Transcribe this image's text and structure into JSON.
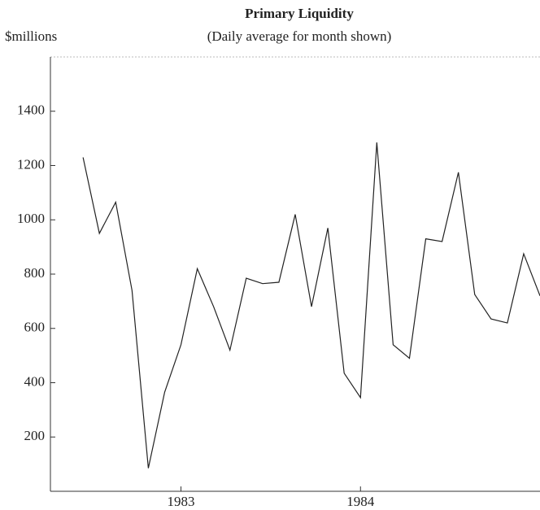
{
  "chart_data": {
    "type": "line",
    "title": "Primary Liquidity",
    "subtitle": "(Daily average for month shown)",
    "y_label": "$millions",
    "x": [
      0,
      1,
      2,
      3,
      4,
      5,
      6,
      7,
      8,
      9,
      10,
      11,
      12,
      13,
      14,
      15,
      16,
      17,
      18,
      19,
      20,
      21,
      22,
      23,
      24,
      25,
      26,
      27,
      28
    ],
    "series": [
      {
        "name": "Primary Liquidity",
        "color": "#222222",
        "values": [
          1230,
          950,
          1065,
          740,
          85,
          365,
          540,
          820,
          680,
          520,
          785,
          765,
          770,
          1020,
          680,
          970,
          435,
          345,
          1285,
          540,
          490,
          930,
          920,
          1175,
          725,
          635,
          620,
          875,
          720
        ]
      }
    ],
    "xlim": [
      -2,
      28
    ],
    "xticks": [
      {
        "value": 6,
        "label": "1983"
      },
      {
        "value": 17,
        "label": "1984"
      }
    ],
    "ylim": [
      0,
      1600
    ],
    "yticks": [
      200,
      400,
      600,
      800,
      1000,
      1200,
      1400
    ]
  }
}
